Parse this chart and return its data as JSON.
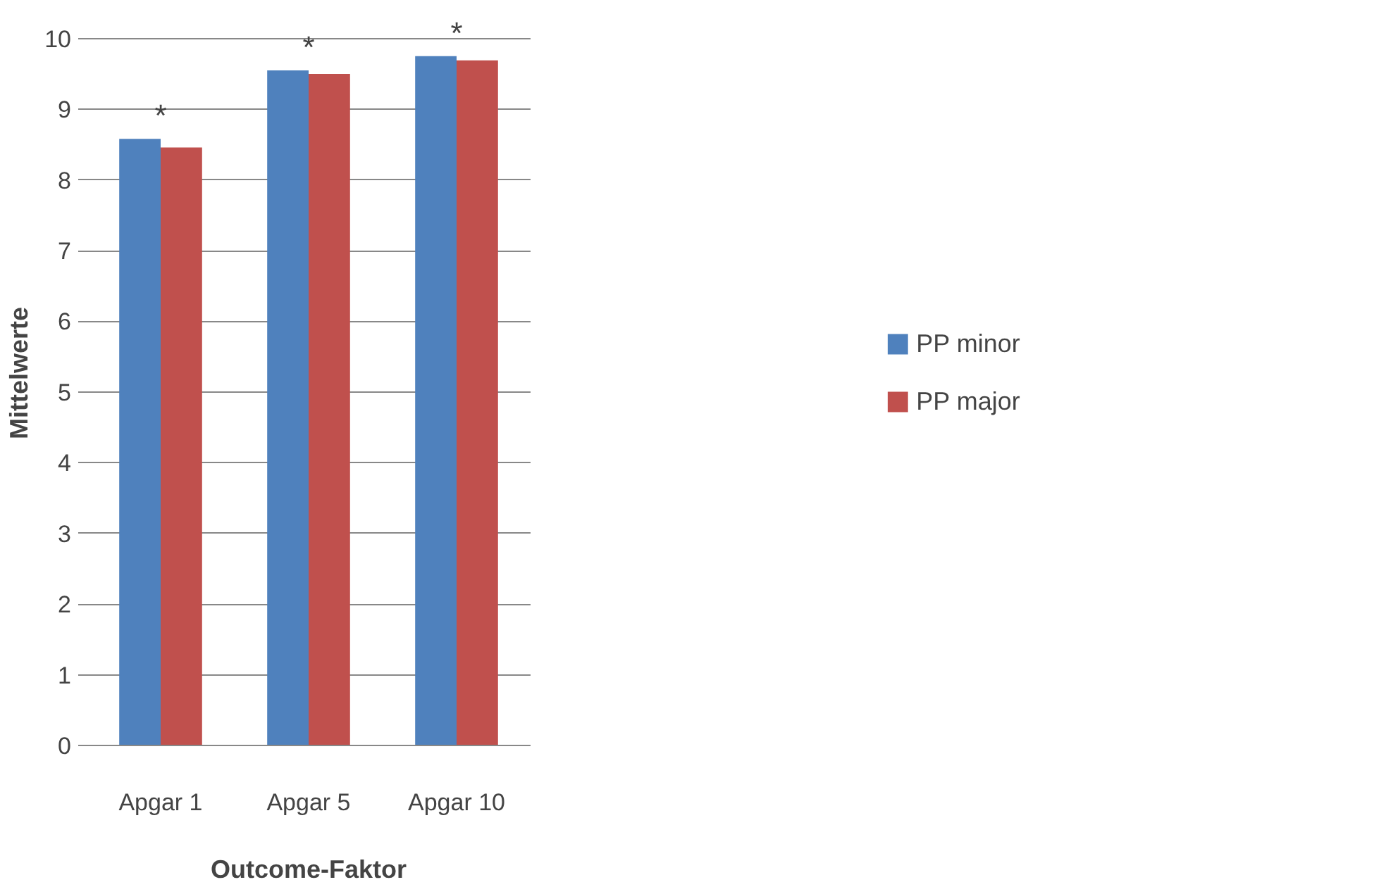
{
  "chart_data": {
    "type": "bar",
    "xlabel": "Outcome-Faktor",
    "ylabel": "Mittelwerte",
    "categories": [
      "Apgar 1",
      "Apgar 5",
      "Apgar 10"
    ],
    "series": [
      {
        "name": "PP minor",
        "color": "#4f81bd",
        "values": [
          8.58,
          9.55,
          9.75
        ]
      },
      {
        "name": "PP major",
        "color": "#c0504d",
        "values": [
          8.46,
          9.5,
          9.69
        ]
      }
    ],
    "ylim": [
      0,
      10
    ],
    "yticks": [
      0,
      1,
      2,
      3,
      4,
      5,
      6,
      7,
      8,
      9,
      10
    ],
    "grid": "y",
    "legend": "right",
    "annotations": [
      "*",
      "*",
      "*"
    ]
  }
}
